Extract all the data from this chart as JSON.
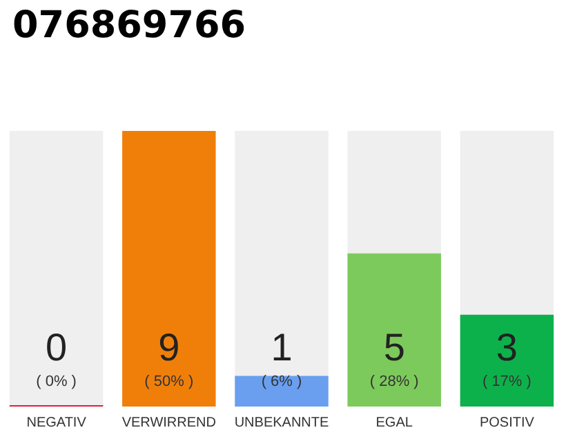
{
  "chart_data": {
    "type": "bar",
    "title": "076869766",
    "categories": [
      "NEGATIV",
      "VERWIRREND",
      "UNBEKANNTE",
      "EGAL",
      "POSITIV"
    ],
    "values": [
      0,
      9,
      1,
      5,
      3
    ],
    "colors": [
      "#e31b3b",
      "#f07f0a",
      "#6a9ff0",
      "#7dca5c",
      "#0db14b"
    ],
    "data_labels": true,
    "annotations": [
      "( 0% )",
      "( 50% )",
      "( 6% )",
      "( 28% )",
      "( 17% )"
    ],
    "grid": false
  }
}
